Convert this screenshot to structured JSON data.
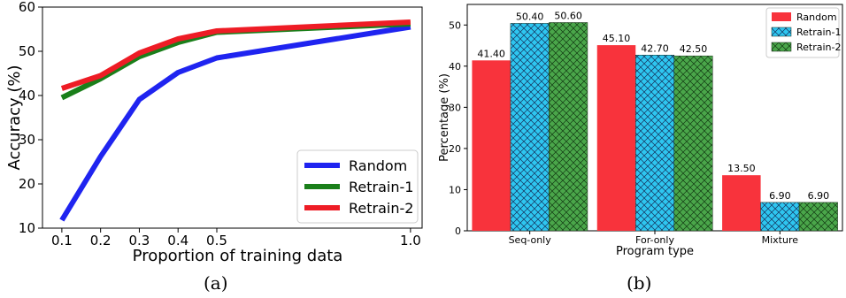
{
  "chart_data": [
    {
      "type": "line",
      "x": [
        0.1,
        0.2,
        0.3,
        0.4,
        0.5,
        1.0
      ],
      "x_tick_labels": [
        "0.1",
        "0.2",
        "0.3",
        "0.4",
        "0.5",
        "1.0"
      ],
      "xlabel": "Proportion of training data",
      "ylabel": "Accuracy (%)",
      "ylim": [
        10,
        60
      ],
      "y_ticks": [
        10,
        20,
        30,
        40,
        50,
        60
      ],
      "legend_position": "bottom-right",
      "grid": false,
      "series": [
        {
          "name": "Random",
          "color": "#1f24f0",
          "values": [
            11.8,
            26.2,
            39.1,
            45.2,
            48.5,
            55.5
          ]
        },
        {
          "name": "Retrain-1",
          "color": "#1a7f1a",
          "values": [
            39.5,
            43.8,
            48.8,
            52.0,
            54.3,
            56.2
          ]
        },
        {
          "name": "Retrain-2",
          "color": "#ee1c25",
          "values": [
            41.6,
            44.5,
            49.6,
            52.8,
            54.6,
            56.6
          ]
        }
      ]
    },
    {
      "type": "bar",
      "categories": [
        "Seq-only",
        "For-only",
        "Mixture"
      ],
      "xlabel": "Program type",
      "ylabel": "Percentage (%)",
      "ylim": [
        0,
        55
      ],
      "y_ticks": [
        0,
        10,
        20,
        30,
        40,
        50
      ],
      "legend_position": "top-right",
      "grid": false,
      "series": [
        {
          "name": "Random",
          "color": "#f8333c",
          "pattern": "solid",
          "values": [
            41.4,
            45.1,
            13.5
          ],
          "labels": [
            "41.40",
            "45.10",
            "13.50"
          ]
        },
        {
          "name": "Retrain-1",
          "color": "#2ec6f0",
          "pattern": "crosshatch",
          "values": [
            50.4,
            42.7,
            6.9
          ],
          "labels": [
            "50.40",
            "42.70",
            "6.90"
          ]
        },
        {
          "name": "Retrain-2",
          "color": "#4aa64a",
          "pattern": "crosshatch",
          "values": [
            50.6,
            42.5,
            6.9
          ],
          "labels": [
            "50.60",
            "42.50",
            "6.90"
          ]
        }
      ]
    }
  ],
  "captions": [
    "(a)",
    "(b)"
  ]
}
